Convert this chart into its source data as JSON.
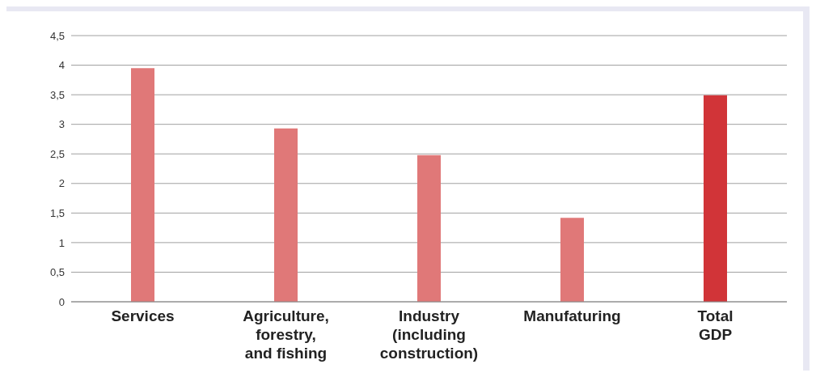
{
  "chart_data": {
    "type": "bar",
    "categories": [
      "Services",
      "Agriculture,\nforestry,\nand fishing",
      "Industry\n(including\nconstruction)",
      "Manufaturing",
      "Total\nGDP"
    ],
    "values": [
      3.95,
      2.93,
      2.48,
      1.42,
      3.49
    ],
    "colors": [
      "#e07878",
      "#e07878",
      "#e07878",
      "#e07878",
      "#d13438"
    ],
    "ylim": [
      0,
      4.5
    ],
    "yticks": [
      0,
      {
        "value": 0.5,
        "label": "0,5"
      },
      1,
      {
        "value": 1.5,
        "label": "1,5"
      },
      2,
      {
        "value": 2.5,
        "label": "2,5"
      },
      3,
      {
        "value": 3.5,
        "label": "3,5"
      },
      4,
      {
        "value": 4.5,
        "label": "4,5"
      }
    ],
    "grid": "y"
  }
}
